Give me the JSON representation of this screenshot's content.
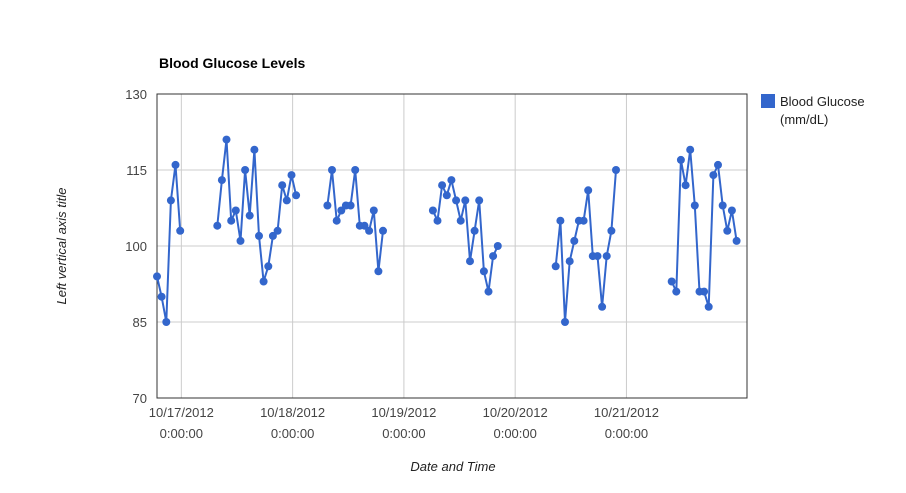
{
  "chart_data": {
    "type": "line",
    "title": "Blood Glucose Levels",
    "xlabel": "Date and Time",
    "ylabel": "Left vertical axis title",
    "ylim": [
      70,
      130
    ],
    "yticks": [
      "70",
      "85",
      "100",
      "115",
      "130"
    ],
    "xlim": [
      "10/16/2012 18:45:00",
      "10/22/2012 2:00:00"
    ],
    "xticks": [
      {
        "x": "10/17/2012 0:00:00",
        "date": "10/17/2012",
        "time": "0:00:00"
      },
      {
        "x": "10/18/2012 0:00:00",
        "date": "10/18/2012",
        "time": "0:00:00"
      },
      {
        "x": "10/19/2012 0:00:00",
        "date": "10/19/2012",
        "time": "0:00:00"
      },
      {
        "x": "10/20/2012 0:00:00",
        "date": "10/20/2012",
        "time": "0:00:00"
      },
      {
        "x": "10/21/2012 0:00:00",
        "date": "10/21/2012",
        "time": "0:00:00"
      }
    ],
    "grid": true,
    "legend_position": "right",
    "series": [
      {
        "name": "Blood Glucose (mm/dL)",
        "color": "#3366cc",
        "segments": [
          [
            [
              "10/16/2012 18:45",
              94
            ],
            [
              "10/16/2012 19:45",
              90
            ],
            [
              "10/16/2012 20:45",
              85
            ],
            [
              "10/16/2012 21:45",
              109
            ],
            [
              "10/16/2012 22:45",
              116
            ],
            [
              "10/16/2012 23:45",
              103
            ]
          ],
          [
            [
              "10/17/2012 7:45",
              104
            ],
            [
              "10/17/2012 8:45",
              113
            ],
            [
              "10/17/2012 9:45",
              121
            ],
            [
              "10/17/2012 10:45",
              105
            ],
            [
              "10/17/2012 11:45",
              107
            ],
            [
              "10/17/2012 12:45",
              101
            ],
            [
              "10/17/2012 13:45",
              115
            ],
            [
              "10/17/2012 14:45",
              106
            ],
            [
              "10/17/2012 15:45",
              119
            ],
            [
              "10/17/2012 16:45",
              102
            ],
            [
              "10/17/2012 17:45",
              93
            ],
            [
              "10/17/2012 18:45",
              96
            ],
            [
              "10/17/2012 19:45",
              102
            ],
            [
              "10/17/2012 20:45",
              103
            ],
            [
              "10/17/2012 21:45",
              112
            ],
            [
              "10/17/2012 22:45",
              109
            ],
            [
              "10/17/2012 23:45",
              114
            ],
            [
              "10/18/2012 0:45",
              110
            ]
          ],
          [
            [
              "10/18/2012 7:30",
              108
            ],
            [
              "10/18/2012 8:30",
              115
            ],
            [
              "10/18/2012 9:30",
              105
            ],
            [
              "10/18/2012 10:30",
              107
            ],
            [
              "10/18/2012 11:30",
              108
            ],
            [
              "10/18/2012 12:30",
              108
            ],
            [
              "10/18/2012 13:30",
              115
            ],
            [
              "10/18/2012 14:30",
              104
            ],
            [
              "10/18/2012 15:30",
              104
            ],
            [
              "10/18/2012 16:30",
              103
            ],
            [
              "10/18/2012 17:30",
              107
            ],
            [
              "10/18/2012 18:30",
              95
            ],
            [
              "10/18/2012 19:30",
              103
            ]
          ],
          [
            [
              "10/19/2012 6:15",
              107
            ],
            [
              "10/19/2012 7:15",
              105
            ],
            [
              "10/19/2012 8:15",
              112
            ],
            [
              "10/19/2012 9:15",
              110
            ],
            [
              "10/19/2012 10:15",
              113
            ],
            [
              "10/19/2012 11:15",
              109
            ],
            [
              "10/19/2012 12:15",
              105
            ],
            [
              "10/19/2012 13:15",
              109
            ],
            [
              "10/19/2012 14:15",
              97
            ],
            [
              "10/19/2012 15:15",
              103
            ],
            [
              "10/19/2012 16:15",
              109
            ],
            [
              "10/19/2012 17:15",
              95
            ],
            [
              "10/19/2012 18:15",
              91
            ],
            [
              "10/19/2012 19:15",
              98
            ],
            [
              "10/19/2012 20:15",
              100
            ]
          ],
          [
            [
              "10/20/2012 8:45",
              96
            ],
            [
              "10/20/2012 9:45",
              105
            ],
            [
              "10/20/2012 10:45",
              85
            ],
            [
              "10/20/2012 11:45",
              97
            ],
            [
              "10/20/2012 12:45",
              101
            ],
            [
              "10/20/2012 13:45",
              105
            ],
            [
              "10/20/2012 14:45",
              105
            ],
            [
              "10/20/2012 15:45",
              111
            ],
            [
              "10/20/2012 16:45",
              98
            ],
            [
              "10/20/2012 17:45",
              98
            ],
            [
              "10/20/2012 18:45",
              88
            ],
            [
              "10/20/2012 19:45",
              98
            ],
            [
              "10/20/2012 20:45",
              103
            ],
            [
              "10/20/2012 21:45",
              115
            ]
          ],
          [
            [
              "10/21/2012 9:45",
              93
            ],
            [
              "10/21/2012 10:45",
              91
            ],
            [
              "10/21/2012 11:45",
              117
            ],
            [
              "10/21/2012 12:45",
              112
            ],
            [
              "10/21/2012 13:45",
              119
            ],
            [
              "10/21/2012 14:45",
              108
            ],
            [
              "10/21/2012 15:45",
              91
            ],
            [
              "10/21/2012 16:45",
              91
            ],
            [
              "10/21/2012 17:45",
              88
            ],
            [
              "10/21/2012 18:45",
              114
            ],
            [
              "10/21/2012 19:45",
              116
            ],
            [
              "10/21/2012 20:45",
              108
            ],
            [
              "10/21/2012 21:45",
              103
            ],
            [
              "10/21/2012 22:45",
              107
            ],
            [
              "10/21/2012 23:45",
              101
            ]
          ]
        ]
      }
    ]
  }
}
